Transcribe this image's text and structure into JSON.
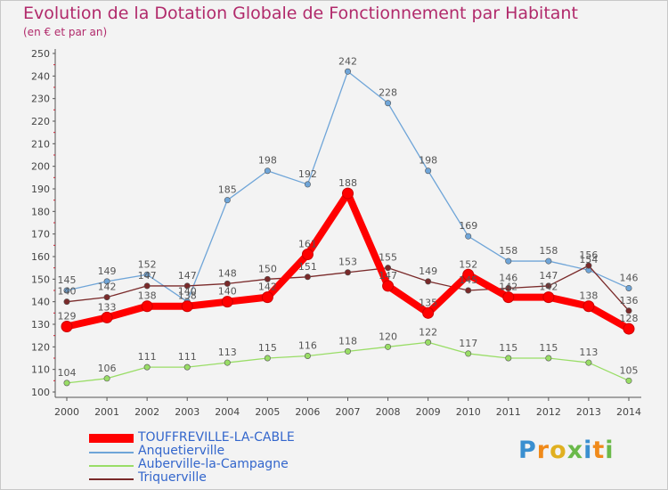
{
  "title": "Evolution de la Dotation Globale de Fonctionnement par Habitant",
  "subtitle": "(en € et par an)",
  "logo": "Proxiti",
  "chart_data": {
    "type": "line",
    "x": [
      "2000",
      "2001",
      "2002",
      "2003",
      "2004",
      "2005",
      "2006",
      "2007",
      "2008",
      "2009",
      "2010",
      "2011",
      "2012",
      "2013",
      "2014"
    ],
    "ylim": [
      100,
      250
    ],
    "yticks": [
      100,
      110,
      120,
      130,
      140,
      150,
      160,
      170,
      180,
      190,
      200,
      210,
      220,
      230,
      240,
      250
    ],
    "grid": false,
    "legend_position": "bottom-left",
    "series": [
      {
        "name": "TOUFFREVILLE-LA-CABLE",
        "color": "#ff0000",
        "values": [
          129,
          133,
          138,
          138,
          140,
          142,
          161,
          188,
          147,
          135,
          152,
          142,
          142,
          138,
          128
        ]
      },
      {
        "name": "Anquetierville",
        "color": "#6fa5d8",
        "values": [
          145,
          149,
          152,
          140,
          185,
          198,
          192,
          242,
          228,
          198,
          169,
          158,
          158,
          154,
          146
        ]
      },
      {
        "name": "Auberville-la-Campagne",
        "color": "#99dd66",
        "values": [
          104,
          106,
          111,
          111,
          113,
          115,
          116,
          118,
          120,
          122,
          117,
          115,
          115,
          113,
          105
        ]
      },
      {
        "name": "Triquerville",
        "color": "#7a2a2a",
        "values": [
          140,
          142,
          147,
          147,
          148,
          150,
          151,
          153,
          155,
          149,
          145,
          146,
          147,
          156,
          136
        ]
      }
    ]
  }
}
